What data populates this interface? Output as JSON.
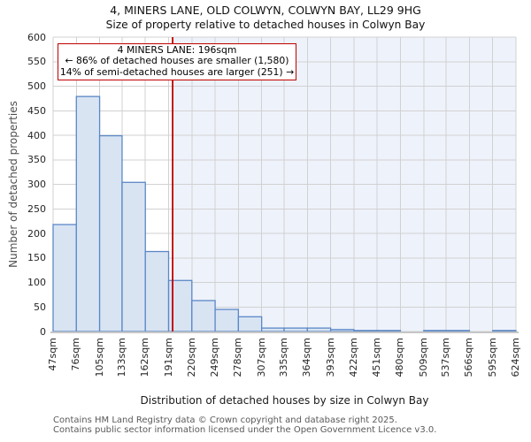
{
  "chart_data": {
    "type": "bar",
    "title": "4, MINERS LANE, OLD COLWYN, COLWYN BAY, LL29 9HG",
    "subtitle": "Size of property relative to detached houses in Colwyn Bay",
    "xlabel": "Distribution of detached houses by size in Colwyn Bay",
    "ylabel": "Number of detached properties",
    "ylim": [
      0,
      600
    ],
    "yticks": [
      0,
      50,
      100,
      150,
      200,
      250,
      300,
      350,
      400,
      450,
      500,
      550,
      600
    ],
    "bin_edges_sqm": [
      47,
      76,
      105,
      133,
      162,
      191,
      220,
      249,
      278,
      307,
      335,
      364,
      393,
      422,
      451,
      480,
      509,
      537,
      566,
      595,
      624
    ],
    "xtick_labels": [
      "47sqm",
      "76sqm",
      "105sqm",
      "133sqm",
      "162sqm",
      "191sqm",
      "220sqm",
      "249sqm",
      "278sqm",
      "307sqm",
      "335sqm",
      "364sqm",
      "393sqm",
      "422sqm",
      "451sqm",
      "480sqm",
      "509sqm",
      "537sqm",
      "566sqm",
      "595sqm",
      "624sqm"
    ],
    "values": [
      218,
      479,
      399,
      304,
      163,
      104,
      63,
      45,
      30,
      7,
      7,
      7,
      4,
      2,
      2,
      0,
      2,
      2,
      0,
      2
    ],
    "grid": true,
    "marker": {
      "label": "4 MINERS LANE",
      "value_sqm": 196
    },
    "annotation": {
      "line1": "4 MINERS LANE: 196sqm",
      "line2": "← 86% of detached houses are smaller (1,580)",
      "line3": "14% of semi-detached houses are larger (251) →"
    },
    "colors": {
      "bar_fill": "#d9e4f3",
      "bar_stroke": "#5b88c6",
      "grid": "#d1d1d1",
      "baseline": "#c6c6c6",
      "region_fill": "#eef2fb",
      "marker_line": "#c00000",
      "annotation_border": "#c00000",
      "annotation_bg": "#ffffff"
    }
  },
  "footer": {
    "line1": "Contains HM Land Registry data © Crown copyright and database right 2025.",
    "line2": "Contains public sector information licensed under the Open Government Licence v3.0."
  }
}
